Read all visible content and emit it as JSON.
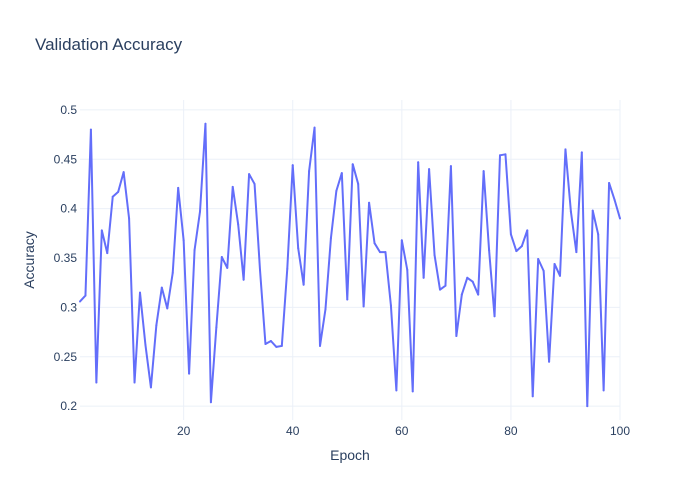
{
  "chart_data": {
    "type": "line",
    "title": "Validation Accuracy",
    "xlabel": "Epoch",
    "ylabel": "Accuracy",
    "xlim": [
      1,
      100
    ],
    "ylim": [
      0.186,
      0.51
    ],
    "xticks": [
      20,
      40,
      60,
      80,
      100
    ],
    "yticks": [
      0.2,
      0.25,
      0.3,
      0.35,
      0.4,
      0.45,
      0.5
    ],
    "grid": true,
    "line_color": "#636efa",
    "x": [
      1,
      2,
      3,
      4,
      5,
      6,
      7,
      8,
      9,
      10,
      11,
      12,
      13,
      14,
      15,
      16,
      17,
      18,
      19,
      20,
      21,
      22,
      23,
      24,
      25,
      26,
      27,
      28,
      29,
      30,
      31,
      32,
      33,
      34,
      35,
      36,
      37,
      38,
      39,
      40,
      41,
      42,
      43,
      44,
      45,
      46,
      47,
      48,
      49,
      50,
      51,
      52,
      53,
      54,
      55,
      56,
      57,
      58,
      59,
      60,
      61,
      62,
      63,
      64,
      65,
      66,
      67,
      68,
      69,
      70,
      71,
      72,
      73,
      74,
      75,
      76,
      77,
      78,
      79,
      80,
      81,
      82,
      83,
      84,
      85,
      86,
      87,
      88,
      89,
      90,
      91,
      92,
      93,
      94,
      95,
      96,
      97,
      98,
      99,
      100
    ],
    "y": [
      0.306,
      0.312,
      0.48,
      0.224,
      0.378,
      0.355,
      0.412,
      0.417,
      0.437,
      0.39,
      0.224,
      0.315,
      0.262,
      0.219,
      0.282,
      0.32,
      0.299,
      0.335,
      0.421,
      0.368,
      0.233,
      0.358,
      0.397,
      0.486,
      0.204,
      0.28,
      0.351,
      0.34,
      0.422,
      0.384,
      0.328,
      0.435,
      0.425,
      0.338,
      0.263,
      0.266,
      0.26,
      0.261,
      0.339,
      0.444,
      0.36,
      0.323,
      0.438,
      0.482,
      0.261,
      0.298,
      0.37,
      0.418,
      0.436,
      0.308,
      0.445,
      0.425,
      0.301,
      0.406,
      0.365,
      0.356,
      0.356,
      0.302,
      0.216,
      0.368,
      0.338,
      0.215,
      0.447,
      0.33,
      0.44,
      0.353,
      0.318,
      0.322,
      0.443,
      0.271,
      0.313,
      0.33,
      0.326,
      0.313,
      0.438,
      0.358,
      0.291,
      0.454,
      0.455,
      0.374,
      0.357,
      0.362,
      0.378,
      0.21,
      0.349,
      0.337,
      0.245,
      0.344,
      0.332,
      0.46,
      0.397,
      0.356,
      0.457,
      0.2,
      0.398,
      0.374,
      0.216,
      0.426,
      0.409,
      0.39
    ]
  }
}
